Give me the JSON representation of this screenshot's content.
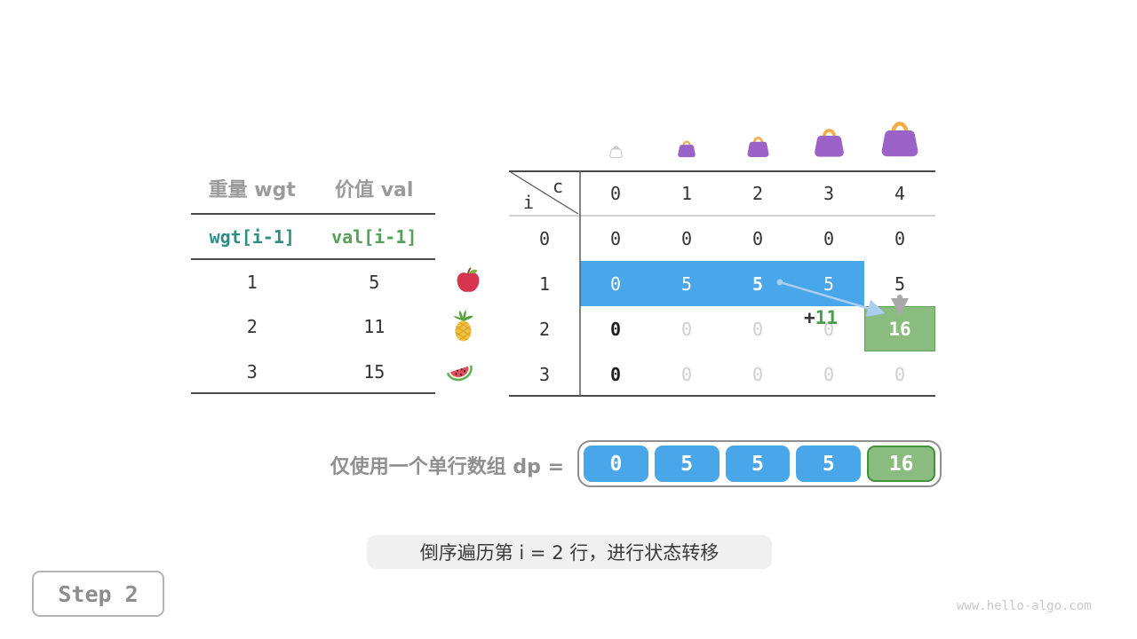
{
  "item_table": {
    "col_headers": [
      "重量 wgt",
      "价值 val"
    ],
    "formula_row": {
      "wgt": "wgt[i-1]",
      "val": "val[i-1]"
    },
    "rows": [
      [
        "1",
        "5"
      ],
      [
        "2",
        "11"
      ],
      [
        "3",
        "15"
      ]
    ]
  },
  "fruits": [
    "apple-icon",
    "pineapple-icon",
    "watermelon-icon"
  ],
  "bags": [
    "bag-outline-icon",
    "bag-small-icon",
    "bag-medium-icon",
    "bag-large-icon",
    "bag-xlarge-icon"
  ],
  "dp_grid": {
    "corner": {
      "top": "c",
      "left": "i"
    },
    "col_headers": [
      "0",
      "1",
      "2",
      "3",
      "4"
    ],
    "row_headers": [
      "0",
      "1",
      "2",
      "3"
    ],
    "rows": [
      {
        "cells": [
          "0",
          "0",
          "0",
          "0",
          "0"
        ],
        "states": [
          "normal",
          "normal",
          "normal",
          "normal",
          "normal"
        ]
      },
      {
        "cells": [
          "0",
          "5",
          "5",
          "5",
          "5"
        ],
        "states": [
          "hl",
          "hl",
          "hl-bold",
          "hl",
          "normal"
        ]
      },
      {
        "cells": [
          "0",
          "0",
          "0",
          "0",
          "16"
        ],
        "states": [
          "bold",
          "faded",
          "faded",
          "faded",
          "green"
        ]
      },
      {
        "cells": [
          "0",
          "0",
          "0",
          "0",
          "0"
        ],
        "states": [
          "bold",
          "faded",
          "faded",
          "faded",
          "faded"
        ]
      }
    ],
    "annotation": {
      "prefix": "+",
      "value": "11"
    }
  },
  "dp_array": {
    "label": "仅使用一个单行数组 dp =",
    "cells": [
      {
        "value": "0",
        "state": "blue"
      },
      {
        "value": "5",
        "state": "blue"
      },
      {
        "value": "5",
        "state": "blue"
      },
      {
        "value": "5",
        "state": "blue"
      },
      {
        "value": "16",
        "state": "green"
      }
    ]
  },
  "caption": "倒序遍历第 i = 2 行，进行状态转移",
  "step_label": "Step 2",
  "watermark": "www.hello-algo.com",
  "colors": {
    "highlight_blue": "#49a6e8",
    "green_fill": "#8abc80",
    "green_border": "#44913c",
    "code_teal": "#2e8f87",
    "code_green": "#55a05a",
    "label_gray": "#9a9a9a",
    "arrow_blue": "#aacdf0",
    "arrow_gray": "#a8a8a8",
    "annotation_green": "#4e9d4e",
    "bag_purple": "#9b63c8",
    "bag_handle_orange": "#f3ae4b",
    "caption_bg": "#f0f0f0"
  }
}
